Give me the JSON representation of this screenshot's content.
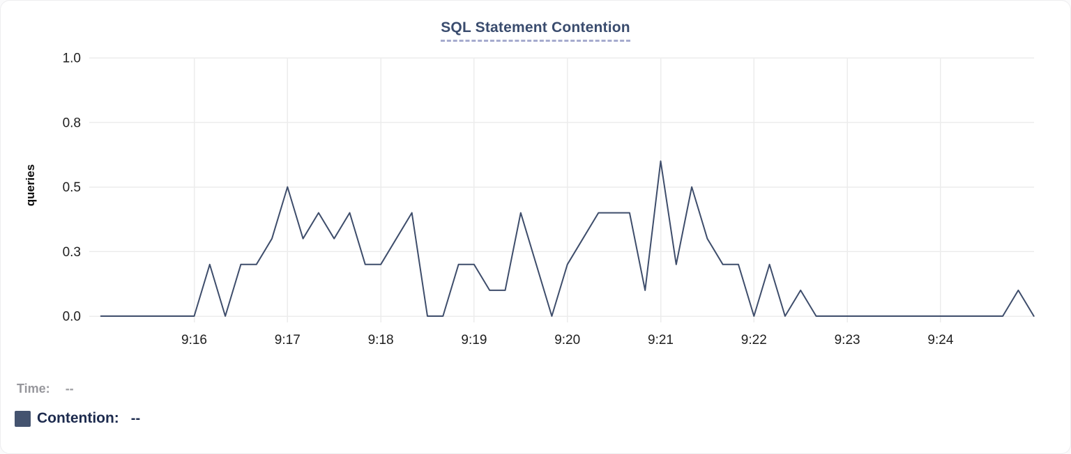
{
  "card": {
    "title": "SQL Statement Contention"
  },
  "legend": {
    "time_label": "Time:",
    "time_value": "--",
    "contention_label": "Contention:",
    "contention_value": "--",
    "swatch_color": "#44536f"
  },
  "chart_data": {
    "type": "line",
    "title": "SQL Statement Contention",
    "xlabel": "",
    "ylabel": "queries",
    "ylim": [
      0,
      1
    ],
    "grid": true,
    "legend_position": "bottom-left",
    "line_color": "#3e4d6b",
    "x_start": "9:15:00",
    "x_end": "9:25:00",
    "sample_interval_seconds": 10,
    "x_tick_labels": [
      "9:16",
      "9:17",
      "9:18",
      "9:19",
      "9:20",
      "9:21",
      "9:22",
      "9:23",
      "9:24"
    ],
    "y_ticks": [
      {
        "label": "0.0",
        "value": 0
      },
      {
        "label": "0.3",
        "value": 0.25
      },
      {
        "label": "0.5",
        "value": 0.5
      },
      {
        "label": "0.8",
        "value": 0.75
      },
      {
        "label": "1.0",
        "value": 1
      }
    ],
    "series": [
      {
        "name": "Contention",
        "values": [
          0,
          0,
          0,
          0,
          0,
          0,
          0,
          0.2,
          0,
          0.2,
          0.2,
          0.3,
          0.5,
          0.3,
          0.4,
          0.3,
          0.4,
          0.2,
          0.2,
          0.3,
          0.4,
          0,
          0,
          0.2,
          0.2,
          0.1,
          0.1,
          0.4,
          0.2,
          0,
          0.2,
          0.3,
          0.4,
          0.4,
          0.4,
          0.1,
          0.6,
          0.2,
          0.5,
          0.3,
          0.2,
          0.2,
          0,
          0.2,
          0,
          0.1,
          0,
          0,
          0,
          0,
          0,
          0,
          0,
          0,
          0,
          0,
          0,
          0,
          0,
          0.1,
          0
        ]
      }
    ]
  }
}
